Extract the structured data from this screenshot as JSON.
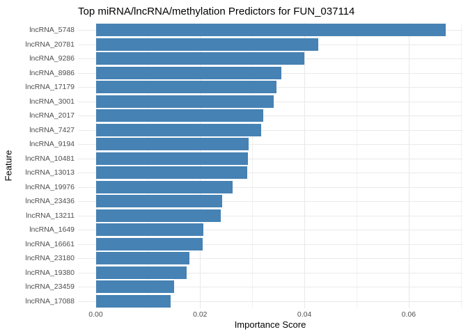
{
  "chart_data": {
    "type": "bar",
    "orientation": "horizontal",
    "title": "Top miRNA/lncRNA/methylation Predictors for FUN_037114",
    "xlabel": "Importance Score",
    "ylabel": "Feature",
    "categories": [
      "lncRNA_5748",
      "lncRNA_20781",
      "lncRNA_9286",
      "lncRNA_8986",
      "lncRNA_17179",
      "lncRNA_3001",
      "lncRNA_2017",
      "lncRNA_7427",
      "lncRNA_9194",
      "lncRNA_10481",
      "lncRNA_13013",
      "lncRNA_19976",
      "lncRNA_23436",
      "lncRNA_13211",
      "lncRNA_1649",
      "lncRNA_16661",
      "lncRNA_23180",
      "lncRNA_19380",
      "lncRNA_23459",
      "lncRNA_17088"
    ],
    "values": [
      0.0671,
      0.0426,
      0.04,
      0.0356,
      0.0346,
      0.0341,
      0.0321,
      0.0317,
      0.0293,
      0.0292,
      0.029,
      0.0262,
      0.0242,
      0.024,
      0.0206,
      0.0205,
      0.0179,
      0.0174,
      0.015,
      0.0144
    ],
    "x_ticks": [
      0.0,
      0.02,
      0.04,
      0.06
    ],
    "x_tick_labels": [
      "0.00",
      "0.02",
      "0.04",
      "0.06"
    ],
    "x_minor_ticks": [
      0.01,
      0.03,
      0.05,
      0.07
    ],
    "xlim": [
      -0.0034,
      0.0703
    ],
    "grid": true,
    "legend": false,
    "bar_color": "#4682B4",
    "major_grid_color": "#e7e7e7",
    "minor_grid_color": "#f1f1f1",
    "tick_label_color": "#4d4d4d",
    "text_color": "#000000",
    "background_color": "#ffffff"
  }
}
